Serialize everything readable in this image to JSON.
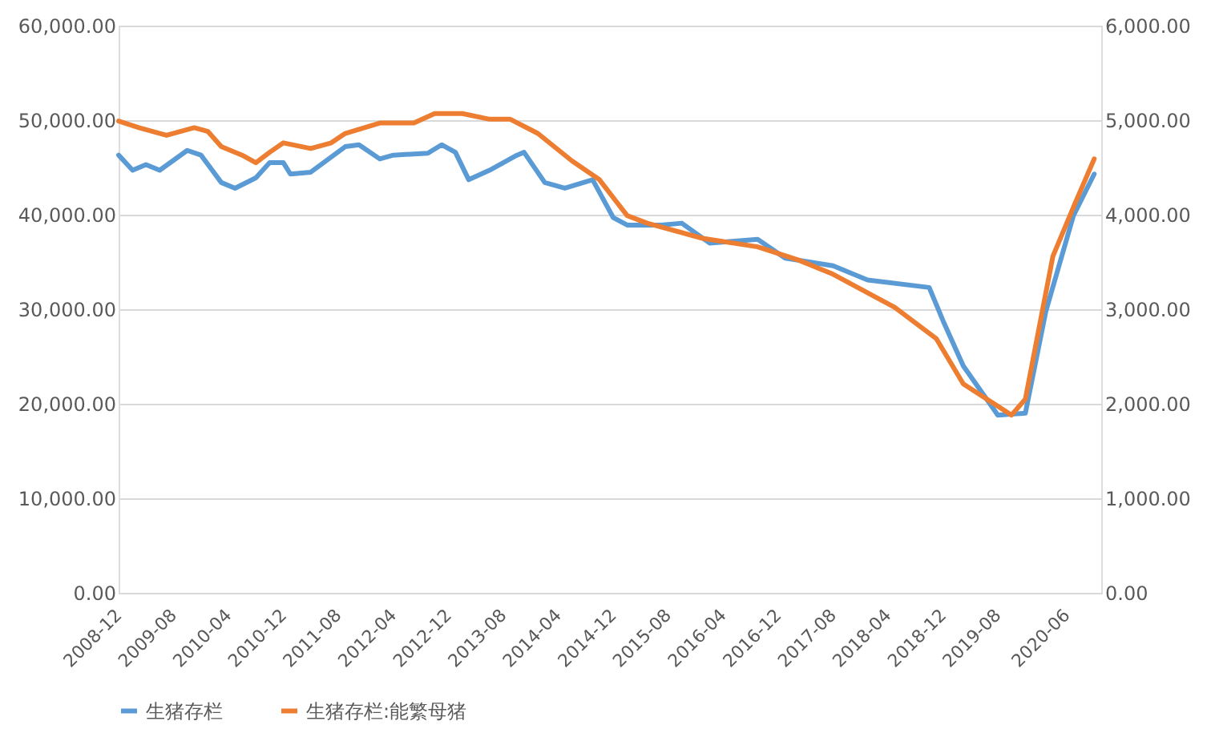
{
  "chart_data": {
    "type": "line",
    "legend": "bottom",
    "grid": "y",
    "line_style": "solid",
    "marker": "none",
    "xlim": [
      "2008-12",
      "2020-11"
    ],
    "xticks": [
      "2008-12",
      "2009-08",
      "2010-04",
      "2010-12",
      "2011-08",
      "2012-04",
      "2012-12",
      "2013-08",
      "2014-04",
      "2014-12",
      "2015-08",
      "2016-04",
      "2016-12",
      "2017-08",
      "2018-04",
      "2018-12",
      "2019-08",
      "2020-06"
    ],
    "ylim": [
      0,
      60000
    ],
    "yticks": [
      {
        "value": 0,
        "label": "0.00"
      },
      {
        "value": 10000,
        "label": "10,000.00"
      },
      {
        "value": 20000,
        "label": "20,000.00"
      },
      {
        "value": 30000,
        "label": "30,000.00"
      },
      {
        "value": 40000,
        "label": "40,000.00"
      },
      {
        "value": 50000,
        "label": "50,000.00"
      },
      {
        "value": 60000,
        "label": "60,000.00"
      }
    ],
    "y2lim": [
      0,
      6000
    ],
    "y2ticks": [
      {
        "value": 0,
        "label": "0.00"
      },
      {
        "value": 1000,
        "label": "1,000.00"
      },
      {
        "value": 2000,
        "label": "2,000.00"
      },
      {
        "value": 3000,
        "label": "3,000.00"
      },
      {
        "value": 4000,
        "label": "4,000.00"
      },
      {
        "value": 5000,
        "label": "5,000.00"
      },
      {
        "value": 6000,
        "label": "6,000.00"
      }
    ],
    "series": [
      {
        "name": "生猪存栏",
        "color": "#5b9bd5",
        "axis": "y",
        "x": [
          "2008-12",
          "2009-02",
          "2009-04",
          "2009-06",
          "2009-10",
          "2009-12",
          "2010-03",
          "2010-05",
          "2010-08",
          "2010-10",
          "2010-12",
          "2011-01",
          "2011-04",
          "2011-09",
          "2011-11",
          "2012-02",
          "2012-04",
          "2012-09",
          "2012-11",
          "2013-01",
          "2013-03",
          "2013-06",
          "2013-10",
          "2013-11",
          "2014-02",
          "2014-05",
          "2014-09",
          "2014-12",
          "2015-02",
          "2015-07",
          "2015-10",
          "2016-02",
          "2016-09",
          "2017-01",
          "2017-08",
          "2018-01",
          "2018-10",
          "2018-12",
          "2019-03",
          "2019-08",
          "2019-12",
          "2020-03",
          "2020-07",
          "2020-10"
        ],
        "values": [
          46300,
          44700,
          45300,
          44700,
          46800,
          46300,
          43400,
          42800,
          43900,
          45500,
          45500,
          44300,
          44500,
          47200,
          47400,
          45900,
          46300,
          46500,
          47400,
          46600,
          43700,
          44700,
          46300,
          46600,
          43400,
          42800,
          43700,
          39700,
          38900,
          38900,
          39100,
          37000,
          37400,
          35400,
          34600,
          33100,
          32300,
          28800,
          24000,
          18800,
          19000,
          29800,
          39900,
          44300
        ]
      },
      {
        "name": "生猪存栏:能繁母猪",
        "color": "#ed7d31",
        "axis": "y2",
        "x": [
          "2008-12",
          "2009-03",
          "2009-07",
          "2009-11",
          "2010-01",
          "2010-03",
          "2010-06",
          "2010-08",
          "2010-10",
          "2010-12",
          "2011-04",
          "2011-07",
          "2011-09",
          "2012-02",
          "2012-07",
          "2012-10",
          "2013-02",
          "2013-06",
          "2013-09",
          "2014-01",
          "2014-06",
          "2014-10",
          "2015-02",
          "2015-05",
          "2016-01",
          "2016-09",
          "2017-03",
          "2017-08",
          "2018-05",
          "2018-11",
          "2019-03",
          "2019-10",
          "2019-12",
          "2020-04",
          "2020-07",
          "2020-10"
        ],
        "values": [
          4990,
          4920,
          4840,
          4920,
          4880,
          4720,
          4630,
          4550,
          4660,
          4760,
          4700,
          4760,
          4860,
          4970,
          4970,
          5070,
          5070,
          5010,
          5010,
          4860,
          4570,
          4370,
          3990,
          3910,
          3750,
          3660,
          3520,
          3370,
          3020,
          2690,
          2210,
          1880,
          2050,
          3560,
          4080,
          4590
        ]
      }
    ]
  }
}
